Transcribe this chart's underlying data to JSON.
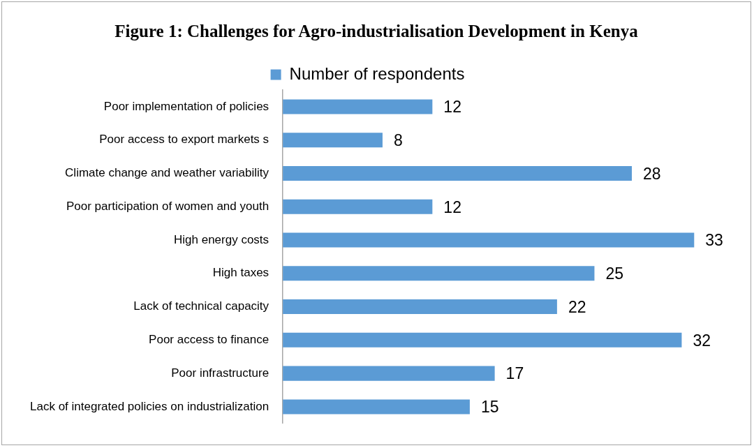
{
  "chart_data": {
    "type": "bar",
    "orientation": "horizontal",
    "title": "Figure 1: Challenges for Agro-industrialisation Development in Kenya",
    "categories": [
      "Poor implementation of policies",
      "Poor access to export markets s",
      "Climate change and weather variability",
      "Poor participation of women and youth",
      "High energy costs",
      "High taxes",
      "Lack of technical capacity",
      "Poor access to finance",
      "Poor infrastructure",
      "Lack of integrated policies on industrialization"
    ],
    "series": [
      {
        "name": "Number of respondents",
        "color": "#5b9bd5",
        "values": [
          12,
          8,
          28,
          12,
          33,
          25,
          22,
          32,
          17,
          15
        ]
      }
    ],
    "data_labels": true,
    "grid": false,
    "legend": "top",
    "tick_labels": "y"
  }
}
